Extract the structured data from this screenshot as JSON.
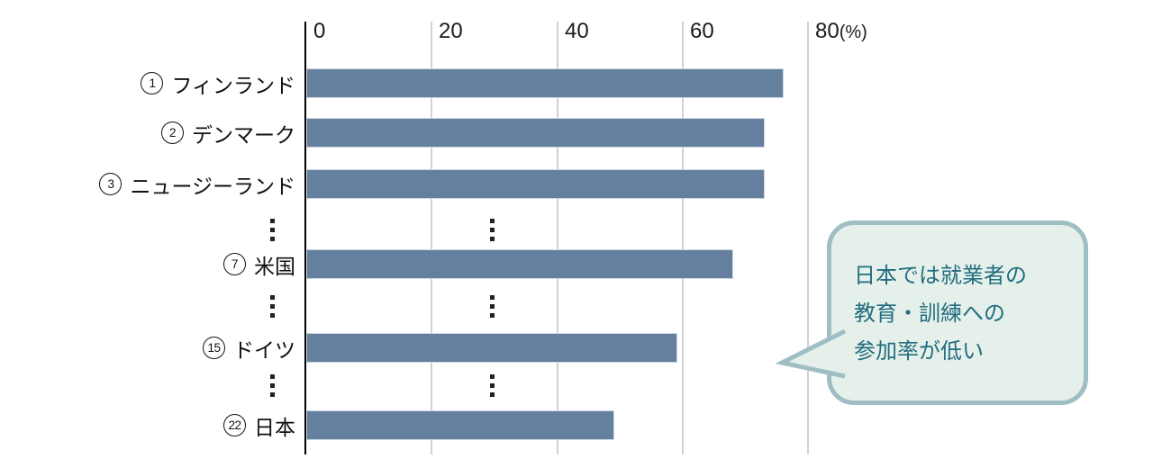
{
  "chart_data": {
    "type": "bar",
    "orientation": "horizontal",
    "title": "",
    "xlabel": "",
    "ylabel": "",
    "unit": "(%)",
    "ticks": [
      "0",
      "20",
      "40",
      "60",
      "80"
    ],
    "tick_values": [
      0,
      20,
      40,
      60,
      80
    ],
    "xlim": [
      0,
      88
    ],
    "grid": true,
    "legend": null,
    "rows": [
      {
        "kind": "bar",
        "rank": "1",
        "label": "フィンランド",
        "value": 76
      },
      {
        "kind": "bar",
        "rank": "2",
        "label": "デンマーク",
        "value": 73
      },
      {
        "kind": "bar",
        "rank": "3",
        "label": "ニュージーランド",
        "value": 73
      },
      {
        "kind": "ellipsis"
      },
      {
        "kind": "bar",
        "rank": "7",
        "label": "米国",
        "value": 68
      },
      {
        "kind": "ellipsis"
      },
      {
        "kind": "bar",
        "rank": "15",
        "label": "ドイツ",
        "value": 59
      },
      {
        "kind": "ellipsis"
      },
      {
        "kind": "bar",
        "rank": "22",
        "label": "日本",
        "value": 49
      }
    ]
  },
  "callout": {
    "line1": "日本では就業者の",
    "line2": "教育・訓練への",
    "line3": "参加率が低い"
  },
  "colors": {
    "bar": "#64809E",
    "grid": "#D2D2D2",
    "axis": "#000000",
    "bubble_fill": "#E6F0EA",
    "bubble_border": "#9FBEC4",
    "bubble_text": "#226E80"
  }
}
